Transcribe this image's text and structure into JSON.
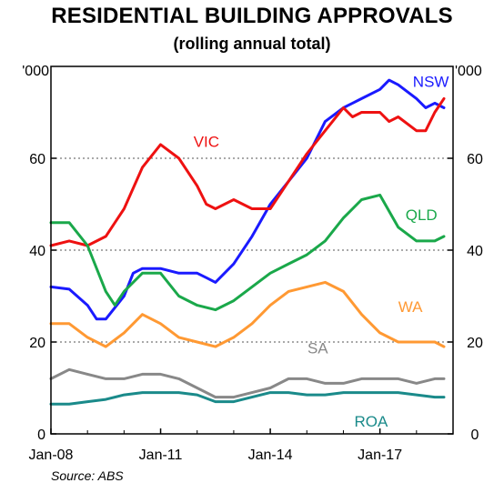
{
  "header": {
    "title": "RESIDENTIAL BUILDING APPROVALS",
    "subtitle": "(rolling annual total)"
  },
  "footer": {
    "source": "Source: ABS"
  },
  "chart_data": {
    "type": "line",
    "title": "RESIDENTIAL BUILDING APPROVALS",
    "subtitle": "(rolling annual total)",
    "unit_left": "'000",
    "unit_right": "'000",
    "ylim": [
      0,
      80
    ],
    "yticks": [
      0,
      20,
      40,
      60
    ],
    "y_tick_labels": [
      "0",
      "20",
      "40",
      "60"
    ],
    "xlim": [
      2008.0,
      2019.0
    ],
    "xticks": [
      2008.0,
      2011.0,
      2014.0,
      2017.0
    ],
    "x_tick_labels": [
      "Jan-08",
      "Jan-11",
      "Jan-14",
      "Jan-17"
    ],
    "grid": "horizontal dotted",
    "series": [
      {
        "name": "NSW",
        "color": "#1a1aff",
        "x": [
          2008.0,
          2008.5,
          2009.0,
          2009.25,
          2009.5,
          2010.0,
          2010.25,
          2010.5,
          2011.0,
          2011.5,
          2012.0,
          2012.25,
          2012.5,
          2013.0,
          2013.5,
          2014.0,
          2014.5,
          2015.0,
          2015.5,
          2016.0,
          2016.25,
          2016.5,
          2017.0,
          2017.25,
          2017.5,
          2018.0,
          2018.25,
          2018.5,
          2018.75
        ],
        "y": [
          32,
          31.5,
          28,
          25,
          25,
          30,
          35,
          36,
          36,
          35,
          35,
          34,
          33,
          37,
          43,
          50,
          55,
          60,
          68,
          71,
          72,
          73,
          75,
          77,
          76,
          73,
          71,
          72,
          71
        ]
      },
      {
        "name": "VIC",
        "color": "#ee1111",
        "x": [
          2008.0,
          2008.5,
          2009.0,
          2009.5,
          2010.0,
          2010.5,
          2011.0,
          2011.5,
          2012.0,
          2012.25,
          2012.5,
          2013.0,
          2013.5,
          2014.0,
          2014.5,
          2015.0,
          2015.5,
          2016.0,
          2016.25,
          2016.5,
          2017.0,
          2017.25,
          2017.5,
          2018.0,
          2018.25,
          2018.5,
          2018.75
        ],
        "y": [
          41,
          42,
          41,
          43,
          49,
          58,
          63,
          60,
          54,
          50,
          49,
          51,
          49,
          49,
          55,
          61,
          66,
          71,
          69,
          70,
          70,
          68,
          69,
          66,
          66,
          70,
          73
        ]
      },
      {
        "name": "QLD",
        "color": "#1aa84a",
        "x": [
          2008.0,
          2008.5,
          2009.0,
          2009.5,
          2009.75,
          2010.0,
          2010.5,
          2011.0,
          2011.5,
          2012.0,
          2012.5,
          2013.0,
          2013.5,
          2014.0,
          2014.5,
          2015.0,
          2015.5,
          2016.0,
          2016.5,
          2017.0,
          2017.5,
          2018.0,
          2018.5,
          2018.75
        ],
        "y": [
          46,
          46,
          41,
          31,
          28,
          31,
          35,
          35,
          30,
          28,
          27,
          29,
          32,
          35,
          37,
          39,
          42,
          47,
          51,
          52,
          45,
          42,
          42,
          43
        ]
      },
      {
        "name": "WA",
        "color": "#ff9933",
        "x": [
          2008.0,
          2008.5,
          2009.0,
          2009.5,
          2010.0,
          2010.5,
          2011.0,
          2011.5,
          2012.0,
          2012.5,
          2013.0,
          2013.5,
          2014.0,
          2014.5,
          2015.0,
          2015.5,
          2016.0,
          2016.5,
          2017.0,
          2017.5,
          2018.0,
          2018.5,
          2018.75
        ],
        "y": [
          24,
          24,
          21,
          19,
          22,
          26,
          24,
          21,
          20,
          19,
          21,
          24,
          28,
          31,
          32,
          33,
          31,
          26,
          22,
          20,
          20,
          20,
          19
        ]
      },
      {
        "name": "SA",
        "color": "#888888",
        "x": [
          2008.0,
          2008.5,
          2009.0,
          2009.5,
          2010.0,
          2010.5,
          2011.0,
          2011.5,
          2012.0,
          2012.5,
          2013.0,
          2013.5,
          2014.0,
          2014.5,
          2015.0,
          2015.5,
          2016.0,
          2016.5,
          2017.0,
          2017.5,
          2018.0,
          2018.5,
          2018.75
        ],
        "y": [
          12,
          14,
          13,
          12,
          12,
          13,
          13,
          12,
          10,
          8,
          8,
          9,
          10,
          12,
          12,
          11,
          11,
          12,
          12,
          12,
          11,
          12,
          12
        ]
      },
      {
        "name": "ROA",
        "color": "#1a8a8a",
        "x": [
          2008.0,
          2008.5,
          2009.0,
          2009.5,
          2010.0,
          2010.5,
          2011.0,
          2011.5,
          2012.0,
          2012.5,
          2013.0,
          2013.5,
          2014.0,
          2014.5,
          2015.0,
          2015.5,
          2016.0,
          2016.5,
          2017.0,
          2017.5,
          2018.0,
          2018.5,
          2018.75
        ],
        "y": [
          6.5,
          6.5,
          7,
          7.5,
          8.5,
          9,
          9,
          9,
          8.5,
          7,
          7,
          8,
          9,
          9,
          8.5,
          8.5,
          9,
          9,
          9,
          9,
          8.5,
          8,
          8
        ]
      }
    ]
  }
}
